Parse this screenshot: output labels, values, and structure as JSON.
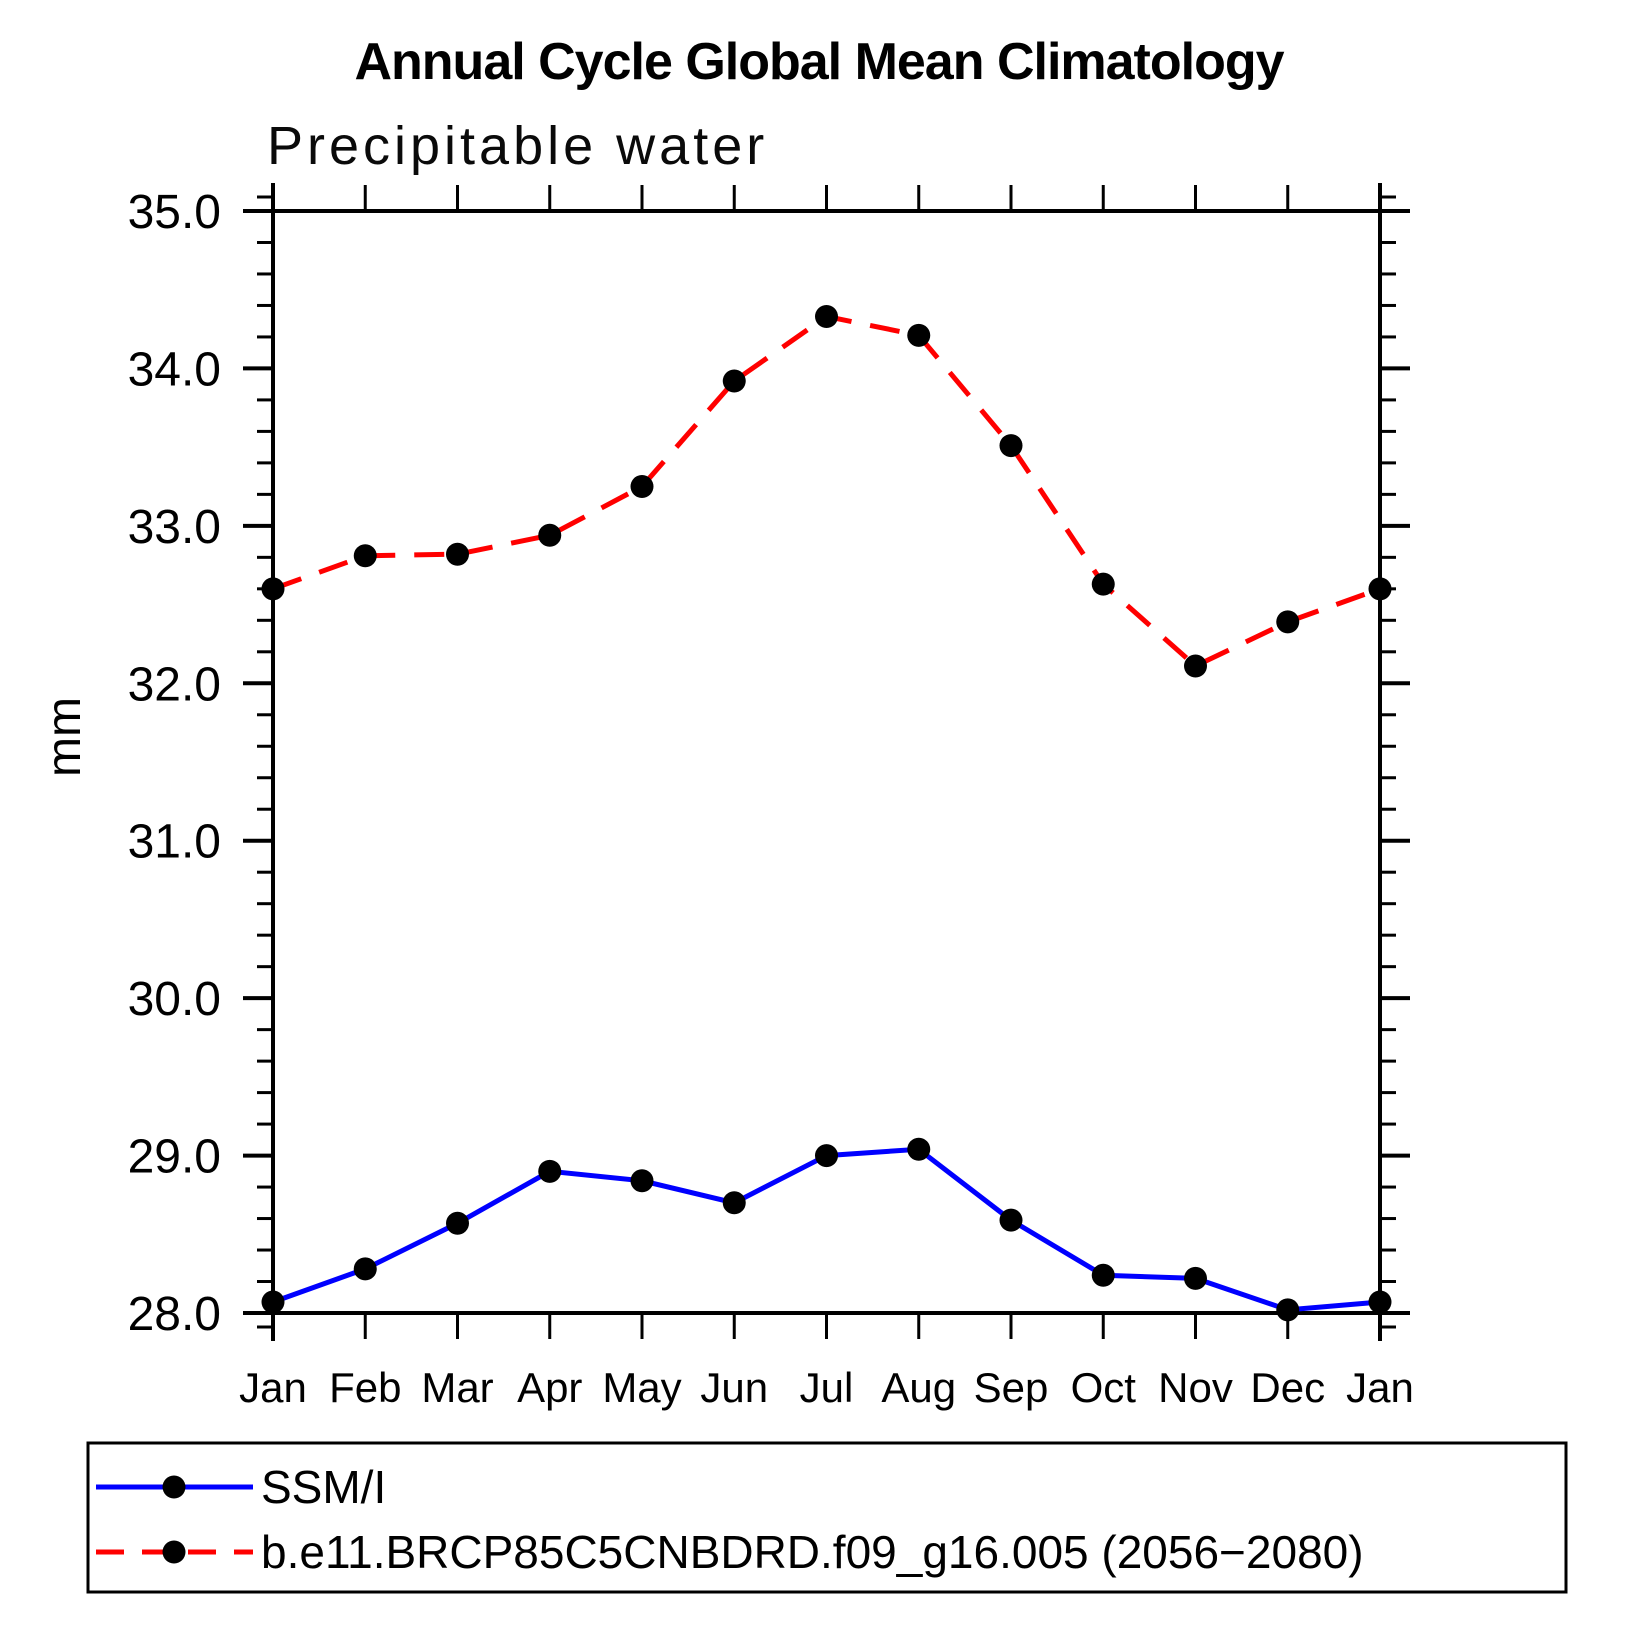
{
  "title": "Annual Cycle Global Mean Climatology",
  "subtitle": "Precipitable water",
  "chart_data": {
    "type": "line",
    "categories": [
      "Jan",
      "Feb",
      "Mar",
      "Apr",
      "May",
      "Jun",
      "Jul",
      "Aug",
      "Sep",
      "Oct",
      "Nov",
      "Dec",
      "Jan"
    ],
    "series": [
      {
        "name": "SSM/I",
        "color": "#0000ff",
        "line_style": "solid",
        "marker": "circle",
        "marker_color": "#000000",
        "values": [
          28.07,
          28.28,
          28.57,
          28.9,
          28.84,
          28.7,
          29.0,
          29.04,
          28.59,
          28.24,
          28.22,
          28.02,
          28.07
        ]
      },
      {
        "name": "b.e11.BRCP85C5CNBDRD.f09_g16.005 (2056−2080)",
        "color": "#ff0000",
        "line_style": "dashed",
        "marker": "circle",
        "marker_color": "#000000",
        "values": [
          32.6,
          32.81,
          32.82,
          32.94,
          33.25,
          33.92,
          34.33,
          34.21,
          33.51,
          32.63,
          32.11,
          32.39,
          32.6
        ]
      }
    ],
    "xlabel": "",
    "ylabel": "mm",
    "ylim": [
      28.0,
      35.0
    ],
    "ytick_labels": [
      "28.0",
      "29.0",
      "30.0",
      "31.0",
      "32.0",
      "33.0",
      "34.0",
      "35.0"
    ],
    "y_minor_step": 0.2,
    "grid": false,
    "legend_position": "bottom-left-box"
  }
}
